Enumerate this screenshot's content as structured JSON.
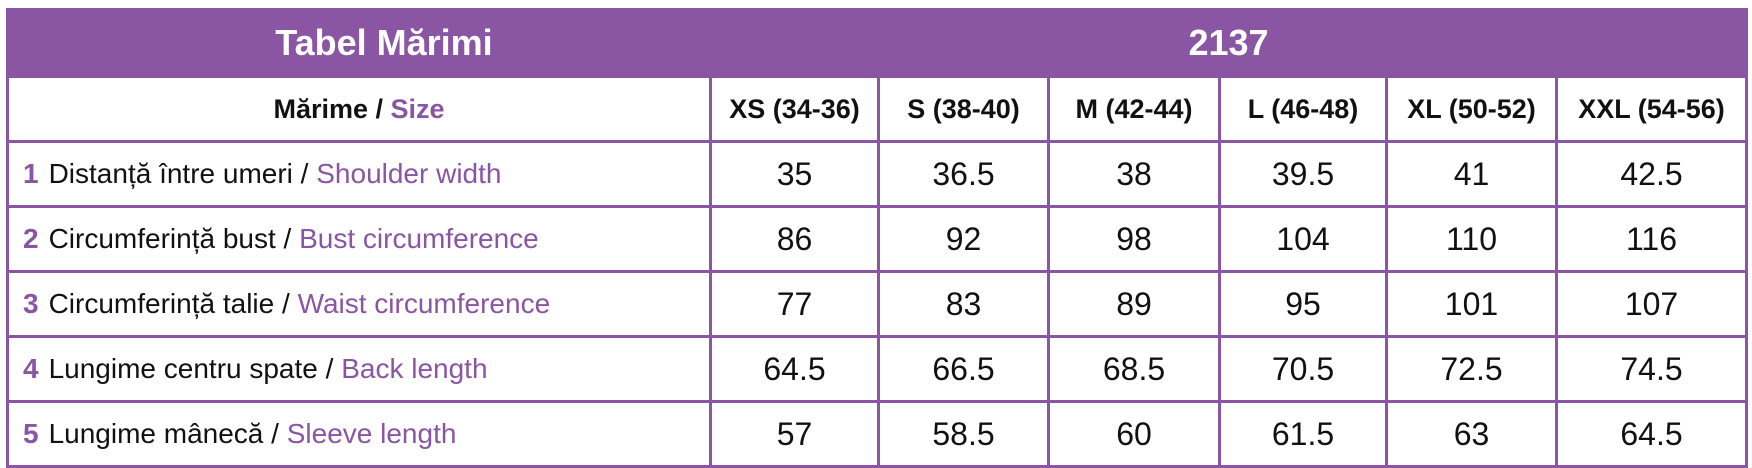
{
  "title": "Tabel Mărimi",
  "model": "2137",
  "header": {
    "label_ro": "Mărime",
    "separator": " / ",
    "label_en": "Size",
    "sizes": [
      "XS (34-36)",
      "S (38-40)",
      "M (42-44)",
      "L (46-48)",
      "XL (50-52)",
      "XXL (54-56)"
    ]
  },
  "rows": [
    {
      "num": "1",
      "ro": "Distanță între umeri",
      "en": "Shoulder width",
      "values": [
        "35",
        "36.5",
        "38",
        "39.5",
        "41",
        "42.5"
      ]
    },
    {
      "num": "2",
      "ro": "Circumferință bust",
      "en": "Bust circumference",
      "values": [
        "86",
        "92",
        "98",
        "104",
        "110",
        "116"
      ]
    },
    {
      "num": "3",
      "ro": "Circumferință talie",
      "en": "Waist circumference",
      "values": [
        "77",
        "83",
        "89",
        "95",
        "101",
        "107"
      ]
    },
    {
      "num": "4",
      "ro": "Lungime centru spate",
      "en": "Back length",
      "values": [
        "64.5",
        "66.5",
        "68.5",
        "70.5",
        "72.5",
        "74.5"
      ]
    },
    {
      "num": "5",
      "ro": "Lungime mânecă",
      "en": "Sleeve length",
      "values": [
        "57",
        "58.5",
        "60",
        "61.5",
        "63",
        "64.5"
      ]
    }
  ],
  "colors": {
    "accent": "#8a55a3"
  }
}
